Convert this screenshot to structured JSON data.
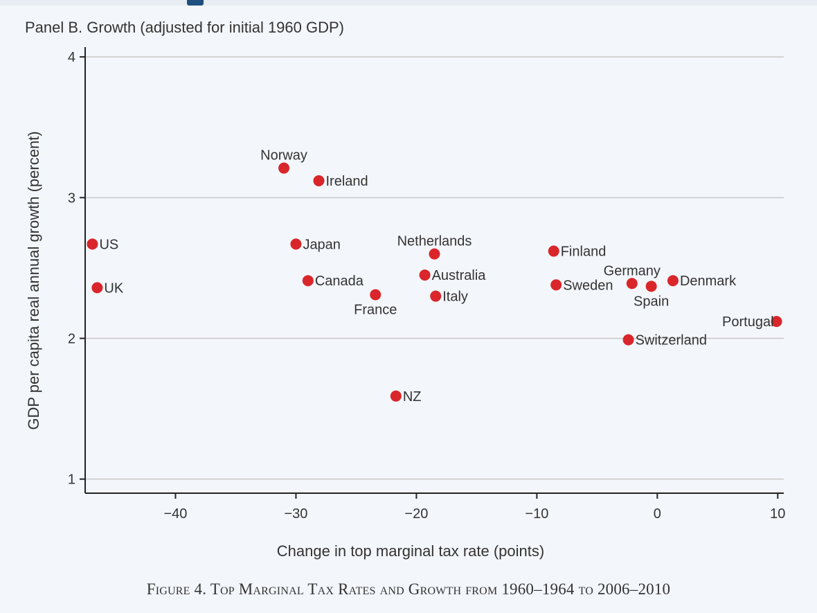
{
  "panel_title": "Panel B. Growth (adjusted for initial 1960 GDP)",
  "caption": "Figure 4. Top Marginal Tax Rates and Growth from 1960–1964 to 2006–2010",
  "colors": {
    "marker": "#d9262b",
    "axis": "#222222",
    "grid": "#c8c8c8",
    "text": "#333333"
  },
  "chart_data": {
    "type": "scatter",
    "title": "Panel B. Growth (adjusted for initial 1960 GDP)",
    "xlabel": "Change in top marginal tax rate (points)",
    "ylabel": "GDP per capita real annual growth (percent)",
    "xlim": [
      -47.5,
      10.5
    ],
    "ylim": [
      0.9,
      4.05
    ],
    "xticks": [
      -40,
      -30,
      -20,
      -10,
      0,
      10
    ],
    "xtick_labels": [
      "−40",
      "−30",
      "−20",
      "−10",
      "0",
      "10"
    ],
    "yticks": [
      1,
      2,
      3,
      4
    ],
    "ytick_labels": [
      "1",
      "2",
      "3",
      "4"
    ],
    "grid": "horizontal",
    "points": [
      {
        "label": "US",
        "x": -46.9,
        "y": 2.67,
        "pos": "right"
      },
      {
        "label": "UK",
        "x": -46.5,
        "y": 2.36,
        "pos": "right"
      },
      {
        "label": "Norway",
        "x": -31.0,
        "y": 3.21,
        "pos": "above"
      },
      {
        "label": "Ireland",
        "x": -28.1,
        "y": 3.12,
        "pos": "right"
      },
      {
        "label": "Japan",
        "x": -30.0,
        "y": 2.67,
        "pos": "right"
      },
      {
        "label": "Canada",
        "x": -29.0,
        "y": 2.41,
        "pos": "right"
      },
      {
        "label": "France",
        "x": -23.4,
        "y": 2.31,
        "pos": "below"
      },
      {
        "label": "Netherlands",
        "x": -18.5,
        "y": 2.6,
        "pos": "above"
      },
      {
        "label": "Australia",
        "x": -19.3,
        "y": 2.45,
        "pos": "right"
      },
      {
        "label": "Italy",
        "x": -18.4,
        "y": 2.3,
        "pos": "right"
      },
      {
        "label": "NZ",
        "x": -21.7,
        "y": 1.59,
        "pos": "right"
      },
      {
        "label": "Finland",
        "x": -8.6,
        "y": 2.62,
        "pos": "right"
      },
      {
        "label": "Sweden",
        "x": -8.4,
        "y": 2.38,
        "pos": "right"
      },
      {
        "label": "Germany",
        "x": -2.1,
        "y": 2.39,
        "pos": "above"
      },
      {
        "label": "Spain",
        "x": -0.5,
        "y": 2.37,
        "pos": "below"
      },
      {
        "label": "Denmark",
        "x": 1.3,
        "y": 2.41,
        "pos": "right"
      },
      {
        "label": "Switzerland",
        "x": -2.4,
        "y": 1.99,
        "pos": "right"
      },
      {
        "label": "Portugal",
        "x": 9.9,
        "y": 2.12,
        "pos": "left"
      }
    ]
  }
}
